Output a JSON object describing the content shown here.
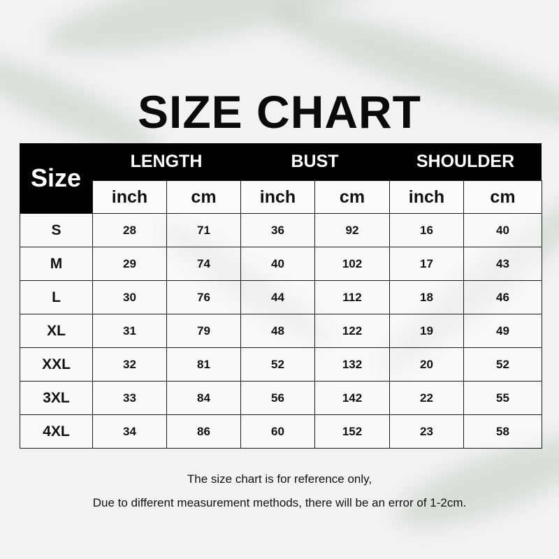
{
  "title": "SIZE CHART",
  "table": {
    "size_header": "Size",
    "groups": [
      "LENGTH",
      "BUST",
      "SHOULDER"
    ],
    "units": [
      "inch",
      "cm",
      "inch",
      "cm",
      "inch",
      "cm"
    ],
    "rows": [
      {
        "size": "S",
        "values": [
          "28",
          "71",
          "36",
          "92",
          "16",
          "40"
        ]
      },
      {
        "size": "M",
        "values": [
          "29",
          "74",
          "40",
          "102",
          "17",
          "43"
        ]
      },
      {
        "size": "L",
        "values": [
          "30",
          "76",
          "44",
          "112",
          "18",
          "46"
        ]
      },
      {
        "size": "XL",
        "values": [
          "31",
          "79",
          "48",
          "122",
          "19",
          "49"
        ]
      },
      {
        "size": "XXL",
        "values": [
          "32",
          "81",
          "52",
          "132",
          "20",
          "52"
        ]
      },
      {
        "size": "3XL",
        "values": [
          "33",
          "84",
          "56",
          "142",
          "22",
          "55"
        ]
      },
      {
        "size": "4XL",
        "values": [
          "34",
          "86",
          "60",
          "152",
          "23",
          "58"
        ]
      }
    ]
  },
  "notes": [
    "The size chart is for reference only,",
    "Due to different measurement methods, there will be an error of 1-2cm."
  ]
}
